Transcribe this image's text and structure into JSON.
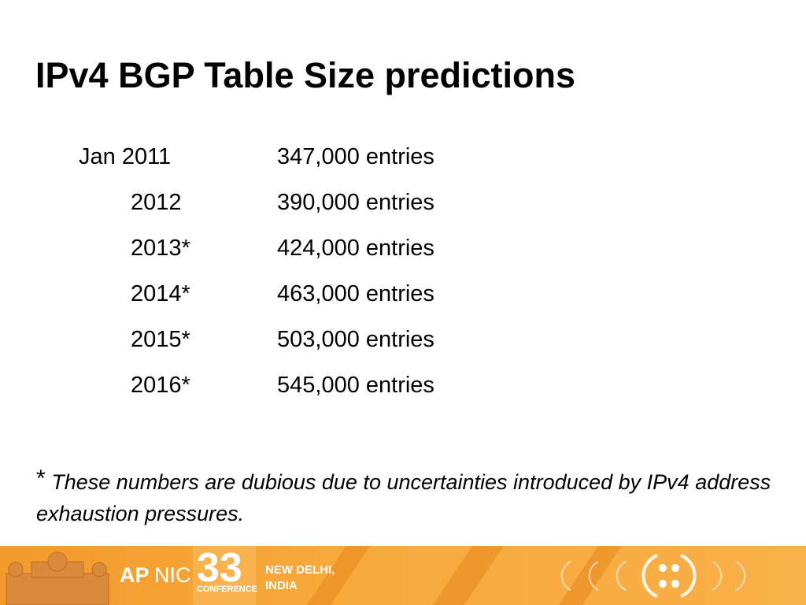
{
  "header": {
    "title": "IPv4 BGP Table Size predictions"
  },
  "table": {
    "rows": [
      [
        "Jan 2011",
        "347,000 entries"
      ],
      [
        "2012",
        "390,000 entries"
      ],
      [
        "2013*",
        "424,000 entries"
      ],
      [
        "2014*",
        "463,000 entries"
      ],
      [
        "2015*",
        "503,000 entries"
      ],
      [
        "2016*",
        "545,000 entries"
      ]
    ]
  },
  "footnote": {
    "marker": "*",
    "text": "These numbers are dubious due to uncertainties introduced by IPv4 address exhaustion pressures."
  },
  "footer": {
    "org_bold": "AP",
    "org_light": "NIC",
    "number": "33",
    "event": "CONFERENCE",
    "city": "NEW DELHI,",
    "country": "INDIA"
  }
}
